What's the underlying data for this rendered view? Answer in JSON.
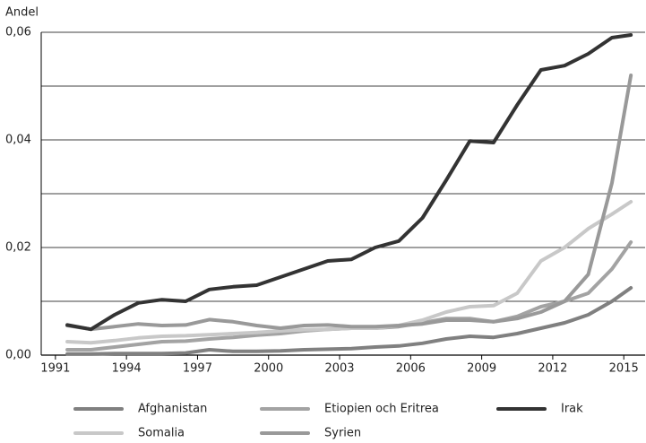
{
  "chart_data": {
    "type": "line",
    "y_axis_label": "Andel",
    "x": [
      1991.5,
      1992.5,
      1993.5,
      1994.5,
      1995.5,
      1996.5,
      1997.5,
      1998.5,
      1999.5,
      2000.5,
      2001.5,
      2002.5,
      2003.5,
      2004.5,
      2005.5,
      2006.5,
      2007.5,
      2008.5,
      2009.5,
      2010.5,
      2011.5,
      2012.5,
      2013.5,
      2014.5,
      2015.3
    ],
    "series": [
      {
        "name": "Afghanistan",
        "color": "#808080",
        "values": [
          0.0002,
          0.0002,
          0.0003,
          0.0003,
          0.0003,
          0.0004,
          0.001,
          0.0007,
          0.0007,
          0.0008,
          0.001,
          0.0011,
          0.0012,
          0.0015,
          0.0017,
          0.0022,
          0.003,
          0.0035,
          0.0033,
          0.004,
          0.005,
          0.006,
          0.0075,
          0.01,
          0.0125
        ]
      },
      {
        "name": "Etiopien och Eritrea",
        "color": "#a3a3a3",
        "values": [
          0.001,
          0.001,
          0.0015,
          0.002,
          0.0025,
          0.0026,
          0.003,
          0.0033,
          0.0037,
          0.004,
          0.0045,
          0.0048,
          0.005,
          0.005,
          0.0053,
          0.006,
          0.0068,
          0.0068,
          0.0062,
          0.0072,
          0.009,
          0.01,
          0.0115,
          0.016,
          0.021
        ]
      },
      {
        "name": "Irak",
        "color": "#333333",
        "values": [
          0.0056,
          0.0048,
          0.0075,
          0.0097,
          0.0103,
          0.01,
          0.0122,
          0.0127,
          0.013,
          0.0145,
          0.016,
          0.0175,
          0.0178,
          0.02,
          0.0212,
          0.0255,
          0.0325,
          0.0398,
          0.0395,
          0.0465,
          0.053,
          0.0538,
          0.056,
          0.059,
          0.0595
        ]
      },
      {
        "name": "Somalia",
        "color": "#c8c8c8",
        "values": [
          0.0025,
          0.0023,
          0.0027,
          0.0032,
          0.0035,
          0.0036,
          0.0038,
          0.004,
          0.0042,
          0.0045,
          0.0047,
          0.0048,
          0.005,
          0.005,
          0.0055,
          0.0065,
          0.008,
          0.009,
          0.0092,
          0.0115,
          0.0175,
          0.02,
          0.0235,
          0.0262,
          0.0285
        ]
      },
      {
        "name": "Syrien",
        "color": "#999999",
        "values": [
          0.0055,
          0.0048,
          0.0053,
          0.0058,
          0.0055,
          0.0056,
          0.0066,
          0.0062,
          0.0055,
          0.005,
          0.0055,
          0.0056,
          0.0053,
          0.0053,
          0.0055,
          0.0058,
          0.0065,
          0.0065,
          0.0062,
          0.0068,
          0.008,
          0.01,
          0.015,
          0.032,
          0.052
        ]
      }
    ],
    "xlim": [
      1990.4,
      2015.9
    ],
    "xticks": [
      1991,
      1994,
      1997,
      2000,
      2003,
      2006,
      2009,
      2012,
      2015
    ],
    "ylim": [
      0,
      0.06
    ],
    "yticks": [
      {
        "value": 0,
        "label": "0,00"
      },
      {
        "value": 0.02,
        "label": "0,02"
      },
      {
        "value": 0.04,
        "label": "0,04"
      },
      {
        "value": 0.06,
        "label": "0,06"
      }
    ],
    "minor_yticks": [
      0.01,
      0.03,
      0.05
    ],
    "grid": true,
    "legend": "bottom"
  }
}
